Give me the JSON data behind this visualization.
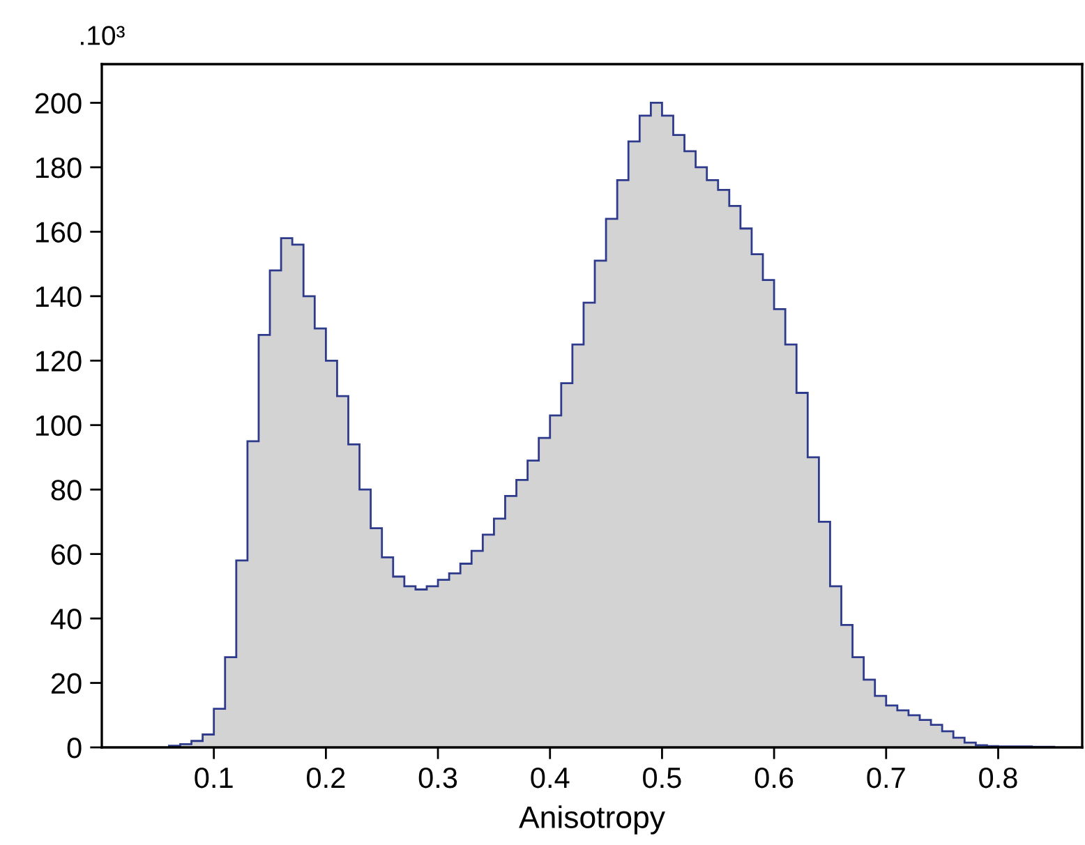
{
  "chart_data": {
    "type": "histogram",
    "xlabel": "Anisotropy",
    "annotations": [
      ".10³"
    ],
    "bins": [
      0.06,
      0.07,
      0.08,
      0.09,
      0.1,
      0.11,
      0.12,
      0.13,
      0.14,
      0.15,
      0.16,
      0.17,
      0.18,
      0.19,
      0.2,
      0.21,
      0.22,
      0.23,
      0.24,
      0.25,
      0.26,
      0.27,
      0.28,
      0.29,
      0.3,
      0.31,
      0.32,
      0.33,
      0.34,
      0.35,
      0.36,
      0.37,
      0.38,
      0.39,
      0.4,
      0.41,
      0.42,
      0.43,
      0.44,
      0.45,
      0.46,
      0.47,
      0.48,
      0.49,
      0.5,
      0.51,
      0.52,
      0.53,
      0.54,
      0.55,
      0.56,
      0.57,
      0.58,
      0.59,
      0.6,
      0.61,
      0.62,
      0.63,
      0.64,
      0.65,
      0.66,
      0.67,
      0.68,
      0.69,
      0.7,
      0.71,
      0.72,
      0.73,
      0.74,
      0.75,
      0.76,
      0.77,
      0.78,
      0.79,
      0.8,
      0.81,
      0.82,
      0.83,
      0.84,
      0.85
    ],
    "series": [
      {
        "color": "#d3d3d3",
        "values": [
          0.5,
          1,
          2,
          4,
          12,
          28,
          58,
          95,
          128,
          148,
          158,
          156,
          140,
          130,
          120,
          109,
          94,
          80,
          68,
          59,
          53,
          50,
          49,
          50,
          52,
          54,
          57,
          61,
          66,
          71,
          78,
          83,
          89,
          96,
          103,
          113,
          125,
          138,
          151,
          164,
          176,
          188,
          196,
          200,
          196,
          190,
          185,
          180,
          176,
          173,
          168,
          161,
          153,
          145,
          136,
          125,
          110,
          90,
          70,
          50,
          38,
          28,
          21,
          16,
          13,
          11.5,
          10,
          8.5,
          7,
          5,
          3,
          1.5,
          0.7,
          0.4,
          0.3,
          0.3,
          0.3,
          0.2,
          0.2
        ]
      }
    ],
    "xlim": [
      0,
      0.875
    ],
    "ylim": [
      0,
      212
    ],
    "xticks": [
      0.1,
      0.2,
      0.3,
      0.4,
      0.5,
      0.6,
      0.7,
      0.8
    ],
    "yticks": [
      0,
      20,
      40,
      60,
      80,
      100,
      120,
      140,
      160,
      180,
      200
    ],
    "grid": false
  }
}
